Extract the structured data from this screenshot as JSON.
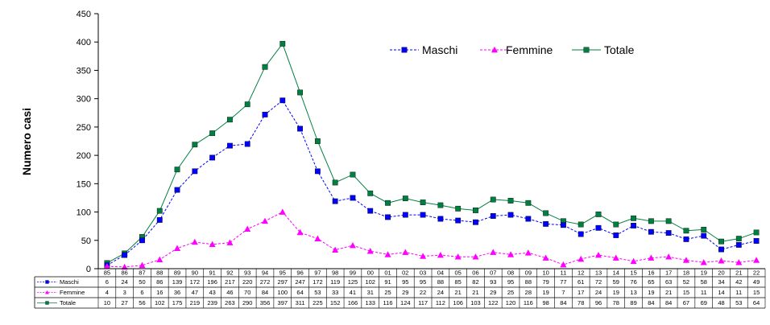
{
  "chart_data": {
    "type": "line",
    "ylabel": "Numero casi",
    "ylim": [
      0,
      450
    ],
    "yticks": [
      0,
      50,
      100,
      150,
      200,
      250,
      300,
      350,
      400,
      450
    ],
    "grid": false,
    "legend_position": "top-right",
    "categories": [
      "85",
      "86",
      "87",
      "88",
      "89",
      "90",
      "91",
      "92",
      "93",
      "94",
      "95",
      "96",
      "97",
      "98",
      "99",
      "00",
      "01",
      "02",
      "03",
      "04",
      "05",
      "06",
      "07",
      "08",
      "09",
      "10",
      "11",
      "12",
      "13",
      "14",
      "15",
      "16",
      "17",
      "18",
      "19",
      "20",
      "21",
      "22"
    ],
    "series": [
      {
        "name": "Maschi",
        "color": "#0000ff",
        "marker": "square",
        "line_style": "dashed",
        "values": [
          6,
          24,
          50,
          86,
          139,
          172,
          196,
          217,
          220,
          272,
          297,
          247,
          172,
          119,
          125,
          102,
          91,
          95,
          95,
          88,
          85,
          82,
          93,
          95,
          88,
          79,
          77,
          61,
          72,
          59,
          76,
          65,
          63,
          52,
          58,
          34,
          42,
          49
        ]
      },
      {
        "name": "Femmine",
        "color": "#ff00ff",
        "marker": "triangle",
        "line_style": "dashed",
        "values": [
          4,
          3,
          6,
          16,
          36,
          47,
          43,
          46,
          70,
          84,
          100,
          64,
          53,
          33,
          41,
          31,
          25,
          29,
          22,
          24,
          21,
          21,
          29,
          25,
          28,
          19,
          7,
          17,
          24,
          19,
          13,
          19,
          21,
          15,
          11,
          14,
          11,
          15
        ]
      },
      {
        "name": "Totale",
        "color": "#008040",
        "marker": "square",
        "line_style": "solid",
        "values": [
          10,
          27,
          56,
          102,
          175,
          219,
          239,
          263,
          290,
          356,
          397,
          311,
          225,
          152,
          166,
          133,
          116,
          124,
          117,
          112,
          106,
          103,
          122,
          120,
          116,
          98,
          84,
          78,
          96,
          78,
          89,
          84,
          84,
          67,
          69,
          48,
          53,
          64
        ]
      }
    ]
  }
}
